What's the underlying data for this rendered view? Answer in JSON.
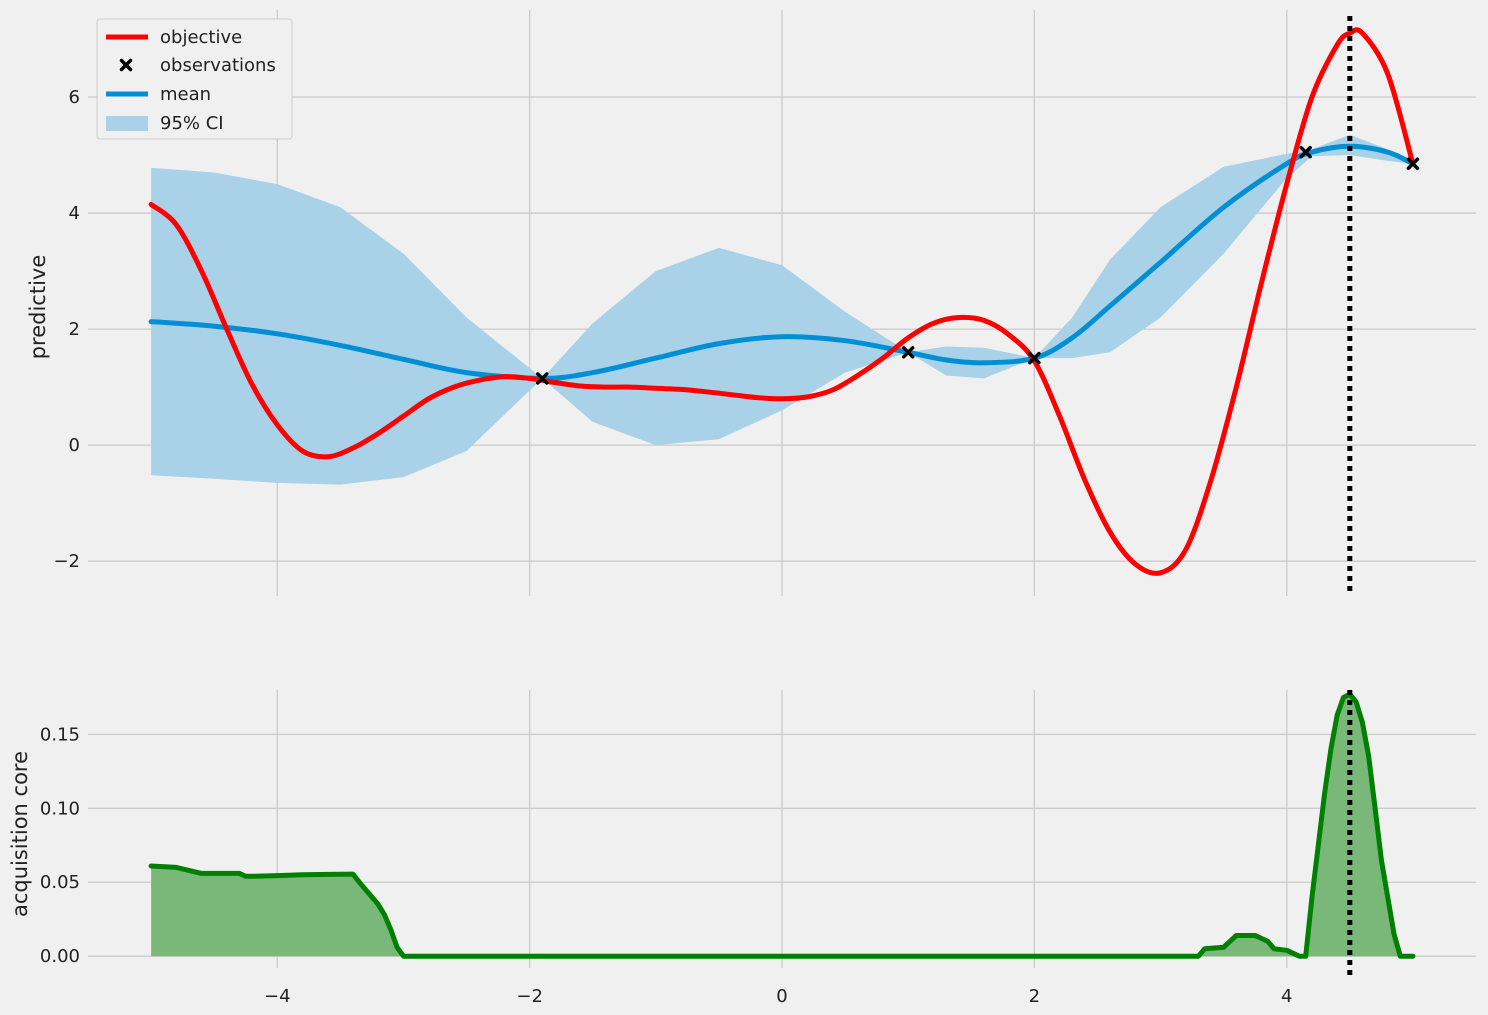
{
  "chart_data": [
    {
      "type": "line",
      "ylabel": "predictive",
      "xlim": [
        -5.5,
        5.5
      ],
      "ylim": [
        -2.6,
        7.5
      ],
      "grid": true,
      "legend": {
        "placement": "top-left",
        "entries": [
          "objective",
          "observations",
          "mean",
          "95% CI"
        ]
      },
      "x_ticks": [
        -4,
        -2,
        0,
        2,
        4
      ],
      "y_ticks": [
        -2,
        0,
        2,
        4,
        6
      ],
      "y_tick_labels": [
        "−2",
        "0",
        "2",
        "4",
        "6"
      ],
      "vline_x": 4.5,
      "series": [
        {
          "name": "objective",
          "color": "#ff0000",
          "x": [
            -5.0,
            -4.8,
            -4.6,
            -4.4,
            -4.2,
            -4.0,
            -3.8,
            -3.6,
            -3.4,
            -3.2,
            -3.0,
            -2.8,
            -2.6,
            -2.4,
            -2.2,
            -2.0,
            -1.8,
            -1.6,
            -1.4,
            -1.2,
            -1.0,
            -0.8,
            -0.6,
            -0.4,
            -0.2,
            0.0,
            0.2,
            0.4,
            0.6,
            0.8,
            1.0,
            1.2,
            1.4,
            1.6,
            1.8,
            2.0,
            2.2,
            2.4,
            2.6,
            2.8,
            3.0,
            3.2,
            3.4,
            3.6,
            3.8,
            4.0,
            4.2,
            4.4,
            4.5,
            4.6,
            4.8,
            5.0
          ],
          "y": [
            4.15,
            3.8,
            3.0,
            2.0,
            1.05,
            0.35,
            -0.1,
            -0.2,
            -0.05,
            0.2,
            0.5,
            0.8,
            1.0,
            1.12,
            1.18,
            1.15,
            1.08,
            1.02,
            1.0,
            1.0,
            0.98,
            0.96,
            0.92,
            0.87,
            0.82,
            0.8,
            0.83,
            0.95,
            1.2,
            1.5,
            1.85,
            2.1,
            2.2,
            2.15,
            1.9,
            1.45,
            0.5,
            -0.6,
            -1.5,
            -2.05,
            -2.2,
            -1.8,
            -0.6,
            1.0,
            2.8,
            4.5,
            6.0,
            6.9,
            7.1,
            7.1,
            6.4,
            4.85
          ]
        },
        {
          "name": "mean",
          "color": "#008fd5",
          "x": [
            -5.0,
            -4.5,
            -4.0,
            -3.5,
            -3.0,
            -2.5,
            -1.9,
            -1.5,
            -1.0,
            -0.5,
            0.0,
            0.5,
            1.0,
            1.3,
            1.6,
            2.0,
            2.3,
            2.6,
            3.0,
            3.5,
            4.0,
            4.2,
            4.5,
            4.8,
            5.0
          ],
          "y": [
            2.13,
            2.05,
            1.92,
            1.72,
            1.48,
            1.25,
            1.15,
            1.25,
            1.5,
            1.75,
            1.87,
            1.8,
            1.6,
            1.47,
            1.42,
            1.5,
            1.85,
            2.4,
            3.15,
            4.1,
            4.85,
            5.05,
            5.15,
            5.05,
            4.85
          ]
        }
      ],
      "ci_band": {
        "name": "95% CI",
        "color": "#a9d1e7",
        "x": [
          -5.0,
          -4.5,
          -4.0,
          -3.5,
          -3.0,
          -2.5,
          -1.9,
          -1.5,
          -1.0,
          -0.5,
          0.0,
          0.5,
          1.0,
          1.3,
          1.6,
          2.0,
          2.3,
          2.6,
          3.0,
          3.5,
          4.0,
          4.2,
          4.5,
          4.8,
          5.0
        ],
        "lower": [
          -0.52,
          -0.58,
          -0.65,
          -0.68,
          -0.55,
          -0.1,
          1.15,
          0.4,
          0.0,
          0.1,
          0.6,
          1.25,
          1.6,
          1.2,
          1.15,
          1.5,
          1.5,
          1.6,
          2.2,
          3.3,
          4.6,
          4.98,
          5.0,
          4.9,
          4.85
        ],
        "upper": [
          4.78,
          4.7,
          4.5,
          4.1,
          3.3,
          2.2,
          1.15,
          2.1,
          3.0,
          3.4,
          3.1,
          2.3,
          1.6,
          1.7,
          1.68,
          1.5,
          2.2,
          3.2,
          4.1,
          4.8,
          5.02,
          5.1,
          5.35,
          5.1,
          4.85
        ]
      },
      "observations": {
        "name": "observations",
        "x": [
          -1.9,
          1.0,
          2.0,
          4.15,
          5.0
        ],
        "y": [
          1.15,
          1.6,
          1.5,
          5.05,
          4.85
        ]
      }
    },
    {
      "type": "area",
      "ylabel": "acquisition core",
      "xlim": [
        -5.5,
        5.5
      ],
      "ylim": [
        -0.008,
        0.18
      ],
      "grid": true,
      "x_ticks": [
        -4,
        -2,
        0,
        2,
        4
      ],
      "x_tick_labels": [
        "−4",
        "−2",
        "0",
        "2",
        "4"
      ],
      "y_ticks": [
        0.0,
        0.05,
        0.1,
        0.15
      ],
      "y_tick_labels": [
        "0.00",
        "0.05",
        "0.10",
        "0.15"
      ],
      "vline_x": 4.5,
      "series": [
        {
          "color": "#008000",
          "fill": "#7ab87a",
          "x": [
            -5.0,
            -4.8,
            -4.7,
            -4.6,
            -4.5,
            -4.4,
            -4.3,
            -4.25,
            -4.2,
            -4.0,
            -3.8,
            -3.6,
            -3.4,
            -3.35,
            -3.3,
            -3.25,
            -3.2,
            -3.15,
            -3.1,
            -3.05,
            -3.0,
            -2.95,
            -2.9,
            3.3,
            3.35,
            3.5,
            3.6,
            3.75,
            3.85,
            3.9,
            4.0,
            4.1,
            4.15,
            4.2,
            4.25,
            4.3,
            4.35,
            4.4,
            4.45,
            4.5,
            4.55,
            4.6,
            4.65,
            4.7,
            4.75,
            4.8,
            4.85,
            4.9,
            5.0
          ],
          "y": [
            0.061,
            0.06,
            0.058,
            0.056,
            0.056,
            0.056,
            0.056,
            0.054,
            0.054,
            0.0545,
            0.055,
            0.0553,
            0.0555,
            0.05,
            0.045,
            0.04,
            0.035,
            0.028,
            0.018,
            0.006,
            0.0,
            0.0,
            0.0,
            0.0,
            0.005,
            0.006,
            0.014,
            0.014,
            0.01,
            0.005,
            0.004,
            0.0,
            0.0,
            0.04,
            0.075,
            0.11,
            0.14,
            0.163,
            0.175,
            0.177,
            0.172,
            0.158,
            0.135,
            0.1,
            0.065,
            0.04,
            0.015,
            0.0,
            0.0
          ]
        }
      ]
    }
  ]
}
